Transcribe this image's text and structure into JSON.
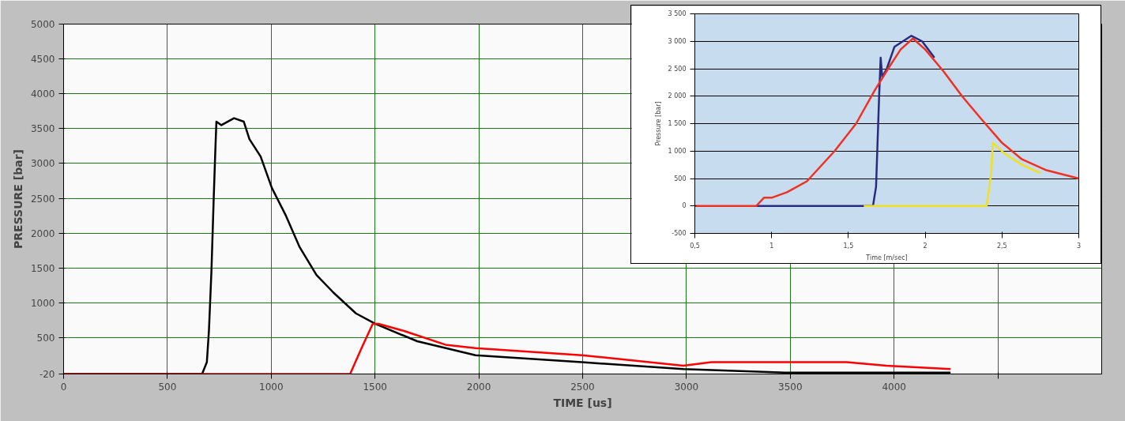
{
  "chart_data": [
    {
      "type": "line",
      "xlabel": "TIME [us]",
      "ylabel": "PRESSURE [bar]",
      "xlim": [
        0,
        5000
      ],
      "ylim": [
        -20,
        5000
      ],
      "xticks": [
        0,
        500,
        1000,
        1500,
        2000,
        2500,
        3000,
        3500,
        4000,
        {
          "value": 4500,
          "label": null
        }
      ],
      "yticks": [
        -20,
        500,
        1000,
        1500,
        2000,
        2500,
        3000,
        3500,
        4000,
        4500,
        5000
      ],
      "grid": true,
      "marker": "none",
      "line_style": "solid",
      "series": [
        {
          "color": "#000000",
          "x": [
            0,
            667,
            690,
            700,
            712,
            723,
            731,
            736,
            760,
            821,
            868,
            895,
            949,
            1003,
            1071,
            1137,
            1218,
            1299,
            1408,
            1501,
            1703,
            1984,
            2496,
            2985,
            3475,
            4272
          ],
          "values": [
            -20,
            -20,
            150,
            600,
            1450,
            2500,
            3200,
            3600,
            3550,
            3650,
            3600,
            3350,
            3100,
            2650,
            2250,
            1800,
            1400,
            1150,
            850,
            700,
            450,
            250,
            150,
            50,
            0,
            0
          ]
        },
        {
          "color": "#ff0000",
          "x": [
            0,
            1380,
            1435,
            1489,
            1517,
            1637,
            1839,
            1984,
            2496,
            2985,
            3120,
            3772,
            3964,
            4272
          ],
          "values": [
            -20,
            -20,
            350,
            700,
            700,
            600,
            400,
            350,
            250,
            100,
            150,
            150,
            100,
            50
          ]
        }
      ]
    },
    {
      "type": "line",
      "xlabel": "Time [m/sec]",
      "ylabel": "Pressure [bar]",
      "xlim": [
        0.5,
        3
      ],
      "ylim": [
        -500,
        3500
      ],
      "xticks": [
        {
          "value": 0.5,
          "label": "0,5"
        },
        1,
        {
          "value": 1.5,
          "label": "1,5"
        },
        2,
        {
          "value": 2.5,
          "label": "2,5"
        },
        3
      ],
      "yticks": [
        -500,
        0,
        500,
        {
          "value": 1000,
          "label": "1 000"
        },
        {
          "value": 1500,
          "label": "1 500"
        },
        {
          "value": 2000,
          "label": "2 000"
        },
        {
          "value": 2500,
          "label": "2 500"
        },
        {
          "value": 3000,
          "label": "3 000"
        },
        {
          "value": 3500,
          "label": "3 500"
        }
      ],
      "grid": "y",
      "marker": "none",
      "line_style": "solid",
      "series": [
        {
          "color": "#2a2a80",
          "x": [
            0.9,
            1.6,
            1.66,
            1.68,
            1.7,
            1.71,
            1.72,
            1.75,
            1.8,
            1.91,
            1.98,
            2.06
          ],
          "values": [
            0,
            0,
            0,
            350,
            2000,
            2700,
            2350,
            2500,
            2900,
            3100,
            3000,
            2700
          ]
        },
        {
          "color": "#f0e020",
          "x": [
            1.6,
            2.4,
            2.43,
            2.44,
            2.52,
            2.63,
            2.75
          ],
          "values": [
            0,
            0,
            600,
            1150,
            950,
            750,
            600
          ]
        },
        {
          "color": "#f03020",
          "x": [
            0.5,
            0.9,
            0.95,
            1.0,
            1.1,
            1.23,
            1.41,
            1.55,
            1.67,
            1.77,
            1.84,
            1.92,
            2.0,
            2.12,
            2.24,
            2.36,
            2.5,
            2.63,
            2.79,
            3.0
          ],
          "values": [
            0,
            0,
            150,
            150,
            250,
            450,
            1000,
            1500,
            2100,
            2550,
            2850,
            3050,
            2850,
            2450,
            2000,
            1600,
            1150,
            850,
            650,
            500
          ]
        }
      ]
    }
  ]
}
